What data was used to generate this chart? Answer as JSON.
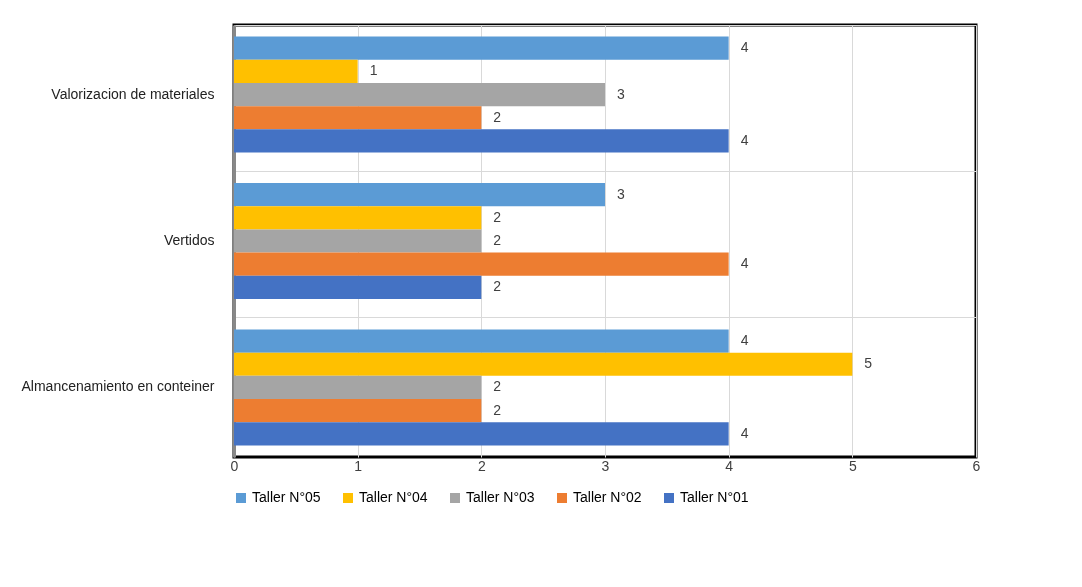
{
  "chart_data": {
    "type": "bar",
    "orientation": "horizontal",
    "categories": [
      "Valorizacion de materiales",
      "Vertidos",
      "Almancenamiento en conteiner"
    ],
    "series": [
      {
        "name": "Taller N°05",
        "color": "#5b9bd5",
        "values": [
          4,
          3,
          4
        ]
      },
      {
        "name": "Taller N°04",
        "color": "#ffc000",
        "values": [
          1,
          2,
          5
        ]
      },
      {
        "name": "Taller N°03",
        "color": "#a5a5a5",
        "values": [
          3,
          2,
          2
        ]
      },
      {
        "name": "Taller N°02",
        "color": "#ed7d31",
        "values": [
          2,
          4,
          2
        ]
      },
      {
        "name": "Taller N°01",
        "color": "#4472c4",
        "values": [
          4,
          2,
          4
        ]
      }
    ],
    "xlim": [
      0,
      6
    ],
    "xticks": [
      0,
      1,
      2,
      3,
      4,
      5,
      6
    ],
    "grid": true,
    "legend": "bottom",
    "data_labels": true
  }
}
